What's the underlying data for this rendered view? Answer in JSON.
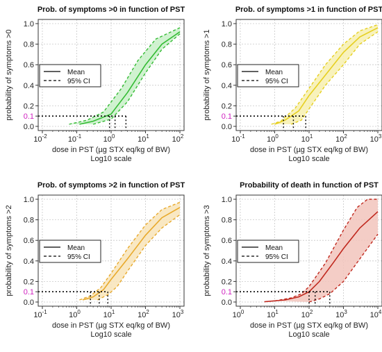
{
  "chart_data": [
    {
      "type": "line",
      "title": "Prob. of symptoms >0 in function of PST",
      "xlabel": "dose in PST (µg STX eq/kg of BW)",
      "xlabel2": "Log10 scale",
      "ylabel": "probability of symptoms >0",
      "x_scale": "log10",
      "xlim": [
        0.01,
        100
      ],
      "x_ticks": [
        {
          "base": "10",
          "exp": "-2"
        },
        {
          "base": "10",
          "exp": "-1"
        },
        {
          "base": "10",
          "exp": "0"
        },
        {
          "base": "10",
          "exp": "1"
        },
        {
          "base": "10",
          "exp": "2"
        }
      ],
      "ylim": [
        0,
        1
      ],
      "y_ticks": [
        "0.0",
        "0.2",
        "0.4",
        "0.6",
        "0.8",
        "1.0"
      ],
      "highlight_y_label": "0.1",
      "legend": {
        "position": "left",
        "entries": [
          "Mean",
          "95% CI"
        ]
      },
      "grid": true,
      "color": "#33bb33",
      "band_color": "#c8f0c8",
      "reference_level": 0.1,
      "threshold_doses": [
        0.9,
        1.3,
        2.7
      ],
      "series": [
        {
          "name": "Mean",
          "x": [
            0.12,
            0.3,
            1,
            3,
            10,
            30,
            100
          ],
          "y": [
            0.02,
            0.05,
            0.12,
            0.33,
            0.6,
            0.8,
            0.92
          ]
        },
        {
          "name": "95% CI",
          "x": [
            0.06,
            0.2,
            0.6,
            2,
            6,
            20,
            100
          ],
          "y": [
            0.02,
            0.06,
            0.14,
            0.37,
            0.64,
            0.85,
            0.96
          ]
        },
        {
          "name": "95% CI",
          "x": [
            0.3,
            1,
            3,
            10,
            30,
            100
          ],
          "y": [
            0.02,
            0.07,
            0.24,
            0.52,
            0.75,
            0.9
          ]
        }
      ]
    },
    {
      "type": "line",
      "title": "Prob. of symptoms >1 in function of PST",
      "xlabel": "dose in PST (µg STX eq/kg of BW)",
      "xlabel2": "Log10 scale",
      "ylabel": "probability of symptoms >1",
      "x_scale": "log10",
      "xlim": [
        0.1,
        1000
      ],
      "x_ticks": [
        {
          "base": "10",
          "exp": "-1"
        },
        {
          "base": "10",
          "exp": "0"
        },
        {
          "base": "10",
          "exp": "1"
        },
        {
          "base": "10",
          "exp": "2"
        },
        {
          "base": "10",
          "exp": "3"
        }
      ],
      "ylim": [
        0,
        1
      ],
      "y_ticks": [
        "0.0",
        "0.2",
        "0.4",
        "0.6",
        "0.8",
        "1.0"
      ],
      "highlight_y_label": "0.1",
      "legend": {
        "position": "left",
        "entries": [
          "Mean",
          "95% CI"
        ]
      },
      "grid": true,
      "color": "#e6cf1f",
      "band_color": "#f7f0b0",
      "reference_level": 0.1,
      "threshold_doses": [
        1.8,
        3.5,
        8
      ],
      "series": [
        {
          "name": "Mean",
          "x": [
            1,
            2,
            5,
            10,
            30,
            100,
            300,
            1000
          ],
          "y": [
            0.02,
            0.06,
            0.15,
            0.3,
            0.5,
            0.72,
            0.87,
            0.96
          ]
        },
        {
          "name": "95% CI",
          "x": [
            0.8,
            1.5,
            4,
            10,
            30,
            100,
            300,
            1000
          ],
          "y": [
            0.02,
            0.05,
            0.18,
            0.37,
            0.6,
            0.8,
            0.93,
            0.99
          ]
        },
        {
          "name": "95% CI",
          "x": [
            3,
            6,
            10,
            30,
            100,
            300,
            1000
          ],
          "y": [
            0.02,
            0.06,
            0.17,
            0.4,
            0.6,
            0.8,
            0.92
          ]
        }
      ]
    },
    {
      "type": "line",
      "title": "Prob. of symptoms >2 in function of PST",
      "xlabel": "dose in PST (µg STX eq/kg of BW)",
      "xlabel2": "Log10 scale",
      "ylabel": "probability of symptoms >2",
      "x_scale": "log10",
      "xlim": [
        0.1,
        1000
      ],
      "x_ticks": [
        {
          "base": "10",
          "exp": "-1"
        },
        {
          "base": "10",
          "exp": "0"
        },
        {
          "base": "10",
          "exp": "1"
        },
        {
          "base": "10",
          "exp": "2"
        },
        {
          "base": "10",
          "exp": "3"
        }
      ],
      "ylim": [
        0,
        1
      ],
      "y_ticks": [
        "0.0",
        "0.2",
        "0.4",
        "0.6",
        "0.8",
        "1.0"
      ],
      "highlight_y_label": "0.1",
      "legend": {
        "position": "left",
        "entries": [
          "Mean",
          "95% CI"
        ]
      },
      "grid": true,
      "color": "#e8a92b",
      "band_color": "#f8e4b8",
      "reference_level": 0.1,
      "threshold_doses": [
        2.5,
        4.5,
        8
      ],
      "series": [
        {
          "name": "Mean",
          "x": [
            1.5,
            3,
            6,
            10,
            30,
            100,
            300,
            1000
          ],
          "y": [
            0.02,
            0.05,
            0.12,
            0.22,
            0.42,
            0.65,
            0.82,
            0.92
          ]
        },
        {
          "name": "95% CI",
          "x": [
            1.2,
            2.5,
            5,
            10,
            30,
            100,
            300,
            1000
          ],
          "y": [
            0.02,
            0.06,
            0.14,
            0.28,
            0.52,
            0.75,
            0.9,
            0.97
          ]
        },
        {
          "name": "95% CI",
          "x": [
            4,
            8,
            15,
            30,
            100,
            300,
            1000
          ],
          "y": [
            0.02,
            0.07,
            0.15,
            0.3,
            0.55,
            0.72,
            0.85
          ]
        }
      ]
    },
    {
      "type": "line",
      "title": "Probability of death in function of PST",
      "xlabel": "dose in PST (µg STX eq/kg of BW)",
      "xlabel2": "Log10 scale",
      "ylabel": "probability of symptoms >3",
      "x_scale": "log10",
      "xlim": [
        1,
        10000
      ],
      "x_ticks": [
        {
          "base": "10",
          "exp": "0"
        },
        {
          "base": "10",
          "exp": "1"
        },
        {
          "base": "10",
          "exp": "2"
        },
        {
          "base": "10",
          "exp": "3"
        },
        {
          "base": "10",
          "exp": "4"
        }
      ],
      "ylim": [
        0,
        1
      ],
      "y_ticks": [
        "0.0",
        "0.2",
        "0.4",
        "0.6",
        "0.8",
        "1.0"
      ],
      "highlight_y_label": "0.1",
      "legend": {
        "position": "left",
        "entries": [
          "Mean",
          "95% CI"
        ]
      },
      "grid": true,
      "color": "#c0281e",
      "band_color": "#f2c4bc",
      "reference_level": 0.1,
      "threshold_doses": [
        100,
        150,
        400
      ],
      "series": [
        {
          "name": "Mean",
          "x": [
            5,
            20,
            50,
            100,
            200,
            500,
            1000,
            3000,
            10000
          ],
          "y": [
            0.003,
            0.02,
            0.05,
            0.1,
            0.2,
            0.38,
            0.52,
            0.72,
            0.88
          ]
        },
        {
          "name": "95% CI",
          "x": [
            10,
            30,
            60,
            100,
            300,
            1000,
            2500,
            5000,
            10000
          ],
          "y": [
            0.01,
            0.04,
            0.08,
            0.15,
            0.38,
            0.7,
            0.92,
            1.0,
            1.0
          ]
        },
        {
          "name": "95% CI",
          "x": [
            100,
            200,
            400,
            1000,
            3000,
            10000
          ],
          "y": [
            0.0,
            0.03,
            0.08,
            0.2,
            0.42,
            0.66
          ]
        }
      ]
    }
  ]
}
